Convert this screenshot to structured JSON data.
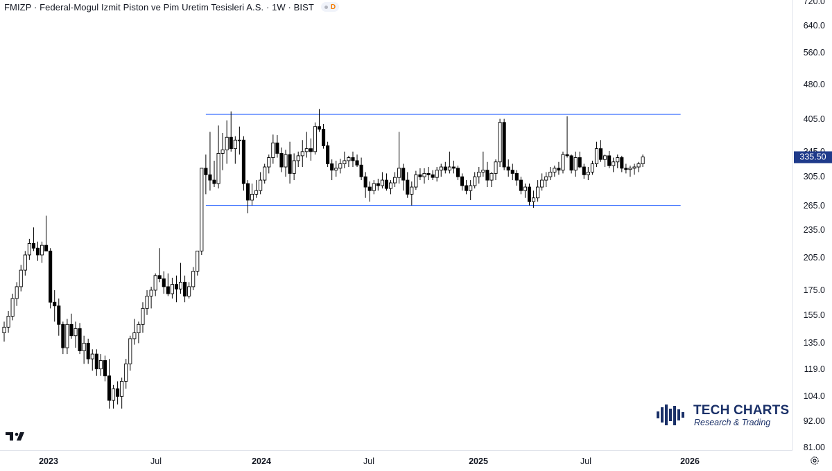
{
  "header": {
    "symbol_title": "FMIZP · Federal-Mogul Izmit Piston ve Pim Uretim Tesisleri A.S. · 1W · BIST",
    "delay_badge": "D"
  },
  "price_axis": {
    "ticks": [
      "720.0",
      "640.0",
      "560.0",
      "480.0",
      "405.0",
      "345.0",
      "305.0",
      "265.0",
      "235.0",
      "205.0",
      "175.0",
      "155.0",
      "135.0",
      "119.0",
      "104.0",
      "92.00",
      "81.00"
    ],
    "last_price": "335.50"
  },
  "time_axis": {
    "labels": [
      {
        "text": "2023",
        "year": true
      },
      {
        "text": "Jul",
        "year": false
      },
      {
        "text": "2024",
        "year": true
      },
      {
        "text": "Jul",
        "year": false
      },
      {
        "text": "2025",
        "year": true
      },
      {
        "text": "Jul",
        "year": false
      },
      {
        "text": "2026",
        "year": true
      }
    ]
  },
  "branding": {
    "name": "TECH CHARTS",
    "tagline": "Research & Trading"
  },
  "colors": {
    "candle_up_fill": "#ffffff",
    "candle_down_fill": "#000000",
    "candle_outline": "#000000",
    "trendline": "#2962ff",
    "last_price_bg": "#1e3a8a",
    "brand": "#1a3068"
  },
  "chart_data": {
    "type": "candlestick",
    "timeframe": "1W",
    "y_scale": "log",
    "ylim": [
      76,
      730
    ],
    "x_start": "2022-12-26",
    "annotations": [
      {
        "type": "horizontal_segment",
        "name": "resistance",
        "price": 414,
        "from": "2023-11-27",
        "to": "2026-01-26"
      },
      {
        "type": "horizontal_segment",
        "name": "support",
        "price": 265,
        "from": "2023-11-27",
        "to": "2026-01-26"
      }
    ],
    "ohlc": [
      [
        142,
        150,
        136,
        146
      ],
      [
        146,
        158,
        142,
        154
      ],
      [
        154,
        172,
        151,
        168
      ],
      [
        168,
        182,
        162,
        178
      ],
      [
        178,
        198,
        174,
        193
      ],
      [
        193,
        212,
        188,
        208
      ],
      [
        208,
        225,
        203,
        220
      ],
      [
        220,
        238,
        212,
        215
      ],
      [
        215,
        222,
        202,
        208
      ],
      [
        208,
        222,
        200,
        218
      ],
      [
        218,
        252,
        212,
        212
      ],
      [
        212,
        215,
        160,
        165
      ],
      [
        165,
        175,
        150,
        162
      ],
      [
        162,
        168,
        140,
        148
      ],
      [
        148,
        150,
        128,
        132
      ],
      [
        132,
        152,
        128,
        148
      ],
      [
        148,
        156,
        138,
        140
      ],
      [
        140,
        150,
        132,
        145
      ],
      [
        145,
        149,
        128,
        130
      ],
      [
        130,
        140,
        122,
        135
      ],
      [
        135,
        138,
        122,
        125
      ],
      [
        125,
        131,
        118,
        128
      ],
      [
        128,
        131,
        115,
        119
      ],
      [
        119,
        128,
        115,
        124
      ],
      [
        124,
        127,
        112,
        115
      ],
      [
        115,
        125,
        98,
        102
      ],
      [
        102,
        110,
        98,
        108
      ],
      [
        108,
        112,
        100,
        104
      ],
      [
        104,
        114,
        98,
        112
      ],
      [
        112,
        125,
        108,
        122
      ],
      [
        122,
        140,
        118,
        138
      ],
      [
        138,
        152,
        134,
        142
      ],
      [
        142,
        150,
        135,
        148
      ],
      [
        148,
        165,
        142,
        160
      ],
      [
        160,
        175,
        155,
        170
      ],
      [
        170,
        178,
        160,
        175
      ],
      [
        175,
        190,
        170,
        188
      ],
      [
        188,
        215,
        182,
        185
      ],
      [
        185,
        192,
        172,
        178
      ],
      [
        178,
        190,
        170,
        172
      ],
      [
        172,
        186,
        168,
        180
      ],
      [
        180,
        188,
        165,
        176
      ],
      [
        176,
        200,
        172,
        182
      ],
      [
        182,
        188,
        165,
        170
      ],
      [
        170,
        182,
        168,
        178
      ],
      [
        178,
        196,
        175,
        192
      ],
      [
        192,
        212,
        188,
        212
      ],
      [
        212,
        318,
        208,
        318
      ],
      [
        318,
        340,
        280,
        308
      ],
      [
        308,
        380,
        285,
        300
      ],
      [
        300,
        330,
        290,
        295
      ],
      [
        295,
        392,
        288,
        342
      ],
      [
        342,
        378,
        315,
        348
      ],
      [
        348,
        402,
        325,
        370
      ],
      [
        370,
        420,
        345,
        350
      ],
      [
        350,
        372,
        325,
        365
      ],
      [
        365,
        390,
        340,
        365
      ],
      [
        365,
        372,
        285,
        295
      ],
      [
        295,
        300,
        255,
        272
      ],
      [
        272,
        295,
        265,
        280
      ],
      [
        280,
        300,
        275,
        285
      ],
      [
        285,
        312,
        280,
        300
      ],
      [
        300,
        325,
        295,
        320
      ],
      [
        320,
        340,
        310,
        335
      ],
      [
        335,
        375,
        325,
        360
      ],
      [
        360,
        374,
        335,
        342
      ],
      [
        342,
        352,
        312,
        320
      ],
      [
        320,
        348,
        305,
        340
      ],
      [
        340,
        362,
        295,
        310
      ],
      [
        310,
        342,
        300,
        330
      ],
      [
        330,
        345,
        320,
        338
      ],
      [
        338,
        365,
        320,
        345
      ],
      [
        345,
        380,
        335,
        350
      ],
      [
        350,
        368,
        330,
        345
      ],
      [
        345,
        398,
        340,
        390
      ],
      [
        390,
        425,
        380,
        385
      ],
      [
        385,
        395,
        350,
        355
      ],
      [
        355,
        362,
        320,
        325
      ],
      [
        325,
        332,
        300,
        315
      ],
      [
        315,
        330,
        305,
        318
      ],
      [
        318,
        333,
        310,
        325
      ],
      [
        325,
        345,
        318,
        330
      ],
      [
        330,
        338,
        320,
        335
      ],
      [
        335,
        345,
        320,
        330
      ],
      [
        330,
        340,
        320,
        323
      ],
      [
        323,
        335,
        300,
        305
      ],
      [
        305,
        312,
        275,
        290
      ],
      [
        290,
        298,
        270,
        285
      ],
      [
        285,
        300,
        280,
        295
      ],
      [
        295,
        302,
        285,
        292
      ],
      [
        292,
        312,
        288,
        300
      ],
      [
        300,
        310,
        285,
        288
      ],
      [
        288,
        300,
        280,
        296
      ],
      [
        296,
        312,
        290,
        304
      ],
      [
        304,
        380,
        295,
        318
      ],
      [
        318,
        325,
        285,
        300
      ],
      [
        300,
        312,
        275,
        280
      ],
      [
        280,
        298,
        265,
        290
      ],
      [
        290,
        314,
        286,
        308
      ],
      [
        308,
        318,
        300,
        305
      ],
      [
        305,
        318,
        295,
        310
      ],
      [
        310,
        320,
        300,
        308
      ],
      [
        308,
        315,
        300,
        304
      ],
      [
        304,
        320,
        298,
        315
      ],
      [
        315,
        325,
        305,
        320
      ],
      [
        320,
        328,
        310,
        315
      ],
      [
        315,
        345,
        310,
        320
      ],
      [
        320,
        330,
        310,
        318
      ],
      [
        318,
        322,
        300,
        305
      ],
      [
        305,
        310,
        285,
        292
      ],
      [
        292,
        300,
        280,
        285
      ],
      [
        285,
        300,
        272,
        292
      ],
      [
        292,
        312,
        288,
        305
      ],
      [
        305,
        320,
        295,
        312
      ],
      [
        312,
        345,
        305,
        315
      ],
      [
        315,
        328,
        290,
        300
      ],
      [
        300,
        312,
        290,
        310
      ],
      [
        310,
        332,
        300,
        328
      ],
      [
        328,
        405,
        320,
        398
      ],
      [
        398,
        405,
        315,
        320
      ],
      [
        320,
        332,
        305,
        315
      ],
      [
        315,
        325,
        300,
        310
      ],
      [
        310,
        315,
        292,
        300
      ],
      [
        300,
        305,
        280,
        285
      ],
      [
        285,
        295,
        275,
        290
      ],
      [
        290,
        295,
        265,
        270
      ],
      [
        270,
        285,
        262,
        275
      ],
      [
        275,
        300,
        270,
        290
      ],
      [
        290,
        310,
        285,
        300
      ],
      [
        300,
        312,
        290,
        305
      ],
      [
        305,
        320,
        300,
        312
      ],
      [
        312,
        322,
        305,
        318
      ],
      [
        318,
        328,
        308,
        315
      ],
      [
        315,
        345,
        310,
        340
      ],
      [
        340,
        410,
        335,
        338
      ],
      [
        338,
        340,
        310,
        315
      ],
      [
        315,
        345,
        305,
        335
      ],
      [
        335,
        345,
        318,
        320
      ],
      [
        320,
        325,
        302,
        308
      ],
      [
        308,
        320,
        300,
        312
      ],
      [
        312,
        330,
        308,
        325
      ],
      [
        325,
        362,
        320,
        350
      ],
      [
        350,
        365,
        328,
        332
      ],
      [
        332,
        340,
        320,
        338
      ],
      [
        338,
        346,
        318,
        322
      ],
      [
        322,
        335,
        312,
        328
      ],
      [
        328,
        340,
        318,
        335
      ],
      [
        335,
        338,
        312,
        318
      ],
      [
        318,
        325,
        310,
        316
      ],
      [
        316,
        322,
        305,
        318
      ],
      [
        318,
        325,
        308,
        320
      ],
      [
        320,
        328,
        312,
        325
      ],
      [
        325,
        340,
        320,
        336
      ]
    ]
  }
}
